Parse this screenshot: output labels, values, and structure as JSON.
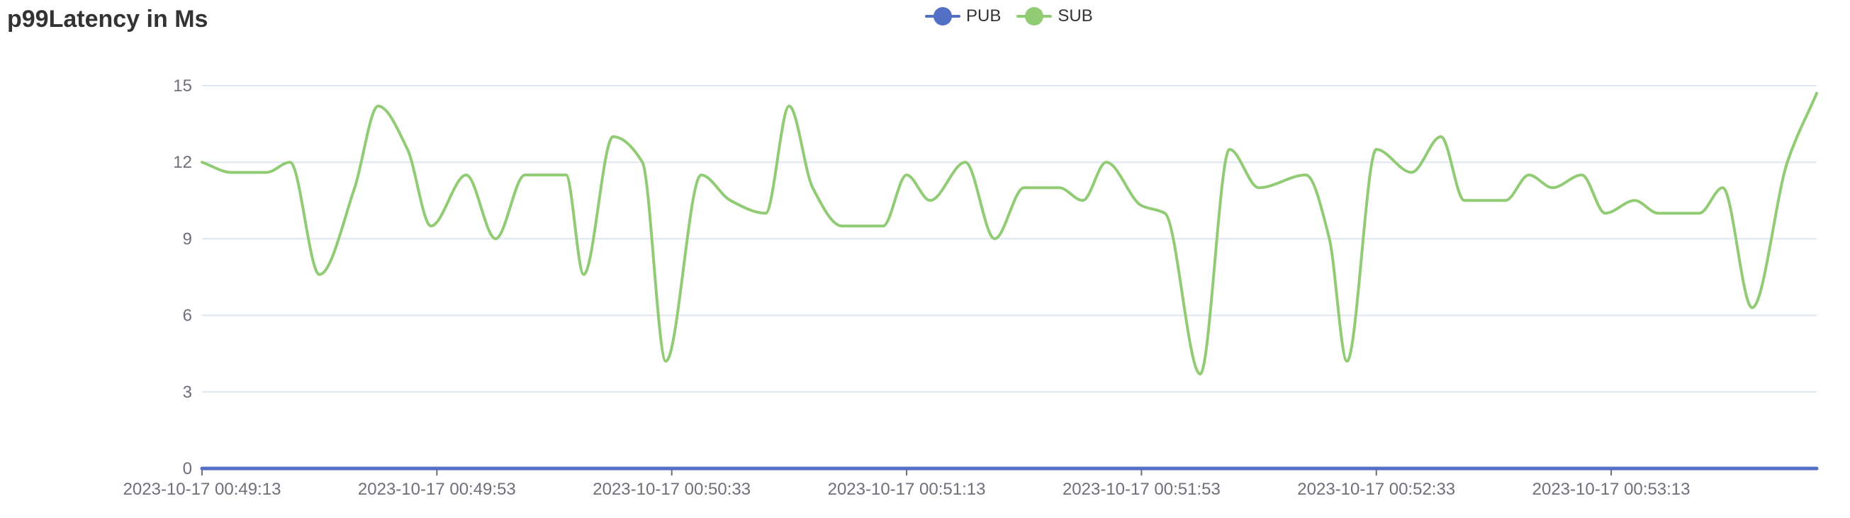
{
  "title": "p99Latency in Ms",
  "legend": {
    "items": [
      {
        "label": "PUB",
        "color": "#5470c6"
      },
      {
        "label": "SUB",
        "color": "#91cc75"
      }
    ]
  },
  "chart_data": {
    "type": "line",
    "title": "p99Latency in Ms",
    "xlabel": "",
    "ylabel": "",
    "ylim": [
      0,
      15
    ],
    "y_ticks": [
      0,
      3,
      6,
      9,
      12,
      15
    ],
    "x_ticks": [
      "2023-10-17 00:49:13",
      "2023-10-17 00:49:53",
      "2023-10-17 00:50:33",
      "2023-10-17 00:51:13",
      "2023-10-17 00:51:53",
      "2023-10-17 00:52:33",
      "2023-10-17 00:53:13"
    ],
    "x_range_seconds": [
      0,
      275
    ],
    "grid": true,
    "smooth": true,
    "legend_position": "top",
    "series": [
      {
        "name": "PUB",
        "color": "#5470c6",
        "points": [
          [
            0,
            0
          ],
          [
            275,
            0
          ]
        ]
      },
      {
        "name": "SUB",
        "color": "#91cc75",
        "points": [
          [
            0,
            12
          ],
          [
            5,
            11.6
          ],
          [
            11,
            11.6
          ],
          [
            15,
            12
          ],
          [
            20,
            7.6
          ],
          [
            26,
            11
          ],
          [
            30,
            14.2
          ],
          [
            35,
            12.5
          ],
          [
            39,
            9.5
          ],
          [
            45,
            11.5
          ],
          [
            50,
            9
          ],
          [
            55,
            11.5
          ],
          [
            62,
            11.5
          ],
          [
            65,
            7.6
          ],
          [
            70,
            13
          ],
          [
            75,
            12
          ],
          [
            79,
            4.2
          ],
          [
            85,
            11.5
          ],
          [
            90,
            10.5
          ],
          [
            96,
            10
          ],
          [
            100,
            14.2
          ],
          [
            104,
            11
          ],
          [
            109,
            9.5
          ],
          [
            116,
            9.5
          ],
          [
            120,
            11.5
          ],
          [
            124,
            10.5
          ],
          [
            130,
            12
          ],
          [
            135,
            9
          ],
          [
            140,
            11
          ],
          [
            146,
            11
          ],
          [
            150,
            10.5
          ],
          [
            154,
            12
          ],
          [
            160,
            10.3
          ],
          [
            164,
            10
          ],
          [
            170,
            3.7
          ],
          [
            175,
            12.5
          ],
          [
            180,
            11
          ],
          [
            188,
            11.5
          ],
          [
            192,
            9
          ],
          [
            195,
            4.2
          ],
          [
            200,
            12.5
          ],
          [
            206,
            11.6
          ],
          [
            211,
            13
          ],
          [
            215,
            10.5
          ],
          [
            222,
            10.5
          ],
          [
            226,
            11.5
          ],
          [
            230,
            11
          ],
          [
            235,
            11.5
          ],
          [
            239,
            10
          ],
          [
            244,
            10.5
          ],
          [
            248,
            10
          ],
          [
            255,
            10
          ],
          [
            259,
            11
          ],
          [
            264,
            6.3
          ],
          [
            270,
            12
          ],
          [
            275,
            14.7
          ]
        ]
      }
    ]
  }
}
